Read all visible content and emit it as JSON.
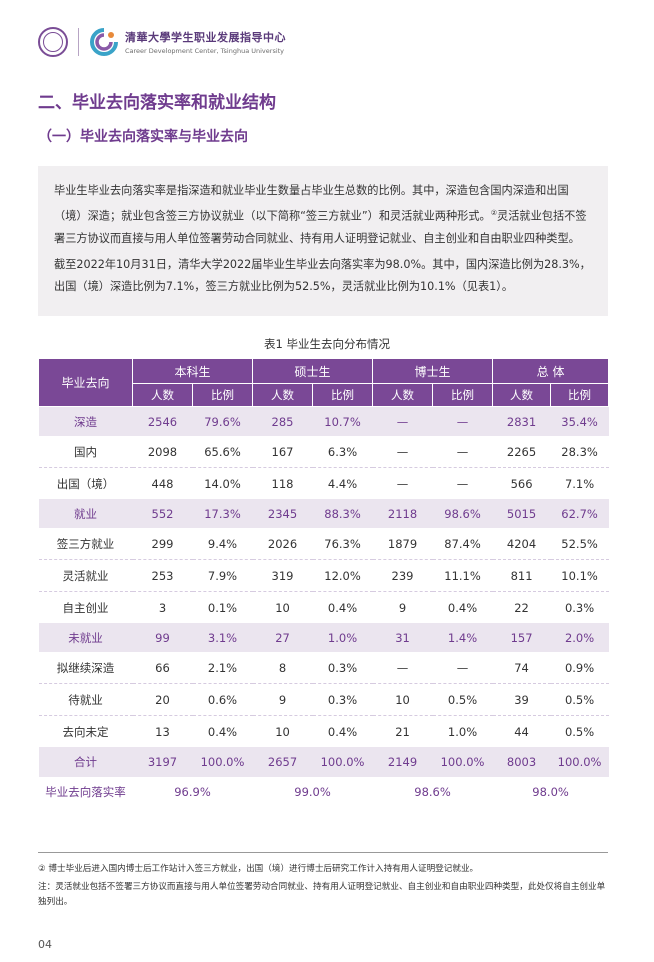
{
  "header": {
    "title": "清華大學学生职业发展指导中心",
    "subtitle": "Career Development Center, Tsinghua University"
  },
  "section_title": "二、毕业去向落实率和就业结构",
  "subsection_title": "（一）毕业去向落实率与毕业去向",
  "intro": {
    "p1a": "毕业生毕业去向落实率是指深造和就业毕业生数量占毕业生总数的比例。其中，深造包含国内深造和出国（境）深造；就业包含签三方协议就业（以下简称“签三方就业”）和灵活就业两种形式。",
    "p1_sup": "②",
    "p1b": "灵活就业包括不签署三方协议而直接与用人单位签署劳动合同就业、持有用人证明登记就业、自主创业和自由职业四种类型。",
    "p2": "截至2022年10月31日，清华大学2022届毕业生毕业去向落实率为98.0%。其中，国内深造比例为28.3%，出国（境）深造比例为7.1%，签三方就业比例为52.5%，灵活就业比例为10.1%（见表1）。"
  },
  "table": {
    "caption": "表1  毕业生去向分布情况",
    "corner": "毕业去向",
    "groups": [
      "本科生",
      "硕士生",
      "博士生",
      "总  体"
    ],
    "subheaders": [
      "人数",
      "比例"
    ],
    "rows": [
      {
        "label": "深造",
        "type": "major",
        "cells": [
          "2546",
          "79.6%",
          "285",
          "10.7%",
          "—",
          "—",
          "2831",
          "35.4%"
        ]
      },
      {
        "label": "国内",
        "type": "sub",
        "cells": [
          "2098",
          "65.6%",
          "167",
          "6.3%",
          "—",
          "—",
          "2265",
          "28.3%"
        ]
      },
      {
        "label": "出国（境）",
        "type": "sub",
        "cells": [
          "448",
          "14.0%",
          "118",
          "4.4%",
          "—",
          "—",
          "566",
          "7.1%"
        ]
      },
      {
        "label": "就业",
        "type": "major",
        "cells": [
          "552",
          "17.3%",
          "2345",
          "88.3%",
          "2118",
          "98.6%",
          "5015",
          "62.7%"
        ]
      },
      {
        "label": "签三方就业",
        "type": "sub",
        "cells": [
          "299",
          "9.4%",
          "2026",
          "76.3%",
          "1879",
          "87.4%",
          "4204",
          "52.5%"
        ]
      },
      {
        "label": "灵活就业",
        "type": "sub",
        "cells": [
          "253",
          "7.9%",
          "319",
          "12.0%",
          "239",
          "11.1%",
          "811",
          "10.1%"
        ]
      },
      {
        "label": "自主创业",
        "type": "sub",
        "cells": [
          "3",
          "0.1%",
          "10",
          "0.4%",
          "9",
          "0.4%",
          "22",
          "0.3%"
        ]
      },
      {
        "label": "未就业",
        "type": "major",
        "cells": [
          "99",
          "3.1%",
          "27",
          "1.0%",
          "31",
          "1.4%",
          "157",
          "2.0%"
        ]
      },
      {
        "label": "拟继续深造",
        "type": "sub",
        "cells": [
          "66",
          "2.1%",
          "8",
          "0.3%",
          "—",
          "—",
          "74",
          "0.9%"
        ]
      },
      {
        "label": "待就业",
        "type": "sub",
        "cells": [
          "20",
          "0.6%",
          "9",
          "0.3%",
          "10",
          "0.5%",
          "39",
          "0.5%"
        ]
      },
      {
        "label": "去向未定",
        "type": "sub",
        "cells": [
          "13",
          "0.4%",
          "10",
          "0.4%",
          "21",
          "1.0%",
          "44",
          "0.5%"
        ]
      },
      {
        "label": "合计",
        "type": "total",
        "cells": [
          "3197",
          "100.0%",
          "2657",
          "100.0%",
          "2149",
          "100.0%",
          "8003",
          "100.0%"
        ]
      }
    ],
    "rate_row": {
      "label": "毕业去向落实率",
      "values": [
        "96.9%",
        "99.0%",
        "98.6%",
        "98.0%"
      ]
    }
  },
  "footnotes": {
    "fn1": "②  博士毕业后进入国内博士后工作站计入签三方就业，出国（境）进行博士后研究工作计入持有用人证明登记就业。",
    "fn2": "注：灵活就业包括不签署三方协议而直接与用人单位签署劳动合同就业、持有用人证明登记就业、自主创业和自由职业四种类型，此处仅将自主创业单独列出。"
  },
  "page_number": "04",
  "colors": {
    "accent": "#7a4896",
    "accent_text": "#6f3b8e",
    "row_tint": "#ebe5ef",
    "box_bg": "#f1eff1"
  }
}
